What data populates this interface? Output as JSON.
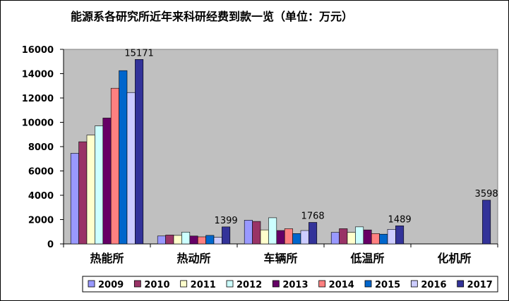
{
  "chart_data": {
    "type": "bar",
    "title": "能源系各研究所近年来科研经费到款一览（单位：万元）",
    "categories": [
      "热能所",
      "热动所",
      "车辆所",
      "低温所",
      "化机所"
    ],
    "ylim": [
      0,
      16000
    ],
    "yticks": [
      0,
      2000,
      4000,
      6000,
      8000,
      10000,
      12000,
      14000,
      16000
    ],
    "grid": false,
    "legend_position": "bottom",
    "series": [
      {
        "name": "2009",
        "color": "#9999ff",
        "values": [
          7450,
          650,
          1950,
          950,
          0
        ]
      },
      {
        "name": "2010",
        "color": "#993366",
        "values": [
          8400,
          730,
          1850,
          1250,
          0
        ]
      },
      {
        "name": "2011",
        "color": "#ffffcc",
        "values": [
          8950,
          700,
          1150,
          950,
          0
        ]
      },
      {
        "name": "2012",
        "color": "#ccffff",
        "values": [
          9700,
          970,
          2150,
          1400,
          0
        ]
      },
      {
        "name": "2013",
        "color": "#660066",
        "values": [
          10350,
          650,
          1100,
          1150,
          0
        ]
      },
      {
        "name": "2014",
        "color": "#ff8080",
        "values": [
          12800,
          580,
          1250,
          850,
          0
        ]
      },
      {
        "name": "2015",
        "color": "#0066cc",
        "values": [
          14250,
          700,
          850,
          800,
          0
        ]
      },
      {
        "name": "2016",
        "color": "#ccccff",
        "values": [
          12450,
          550,
          1100,
          1200,
          0
        ]
      },
      {
        "name": "2017",
        "color": "#333399",
        "values": [
          15171,
          1399,
          1768,
          1489,
          3598
        ]
      }
    ],
    "data_labels": {
      "series": "2017",
      "texts": [
        "15171",
        "1399",
        "1768",
        "1489",
        "3598"
      ]
    }
  },
  "colors": {
    "plot_background": "#c0c0c0",
    "page_background": "#ffffff"
  }
}
